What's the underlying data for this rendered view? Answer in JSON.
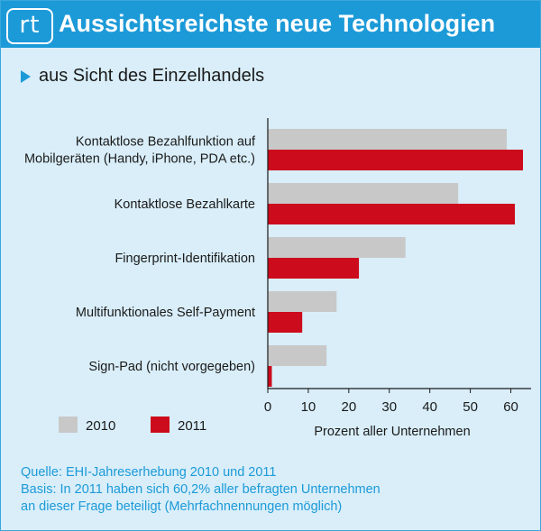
{
  "header": {
    "logo_text": "rt",
    "title": "Aussichtsreichste neue Technologien"
  },
  "subtitle": "aus Sicht des Einzelhandels",
  "chart_data": {
    "type": "bar",
    "orientation": "horizontal",
    "categories": [
      [
        "Kontaktlose Bezahlfunktion auf",
        "Mobilgeräten (Handy, iPhone, PDA etc.)"
      ],
      [
        "Kontaktlose Bezahlkarte"
      ],
      [
        "Fingerprint-Identifikation"
      ],
      [
        "Multifunktionales Self-Payment"
      ],
      [
        "Sign-Pad (nicht vorgegeben)"
      ]
    ],
    "series": [
      {
        "name": "2010",
        "color": "#c8c8c8",
        "values": [
          59,
          47,
          34,
          17,
          14.5
        ]
      },
      {
        "name": "2011",
        "color": "#cc0b1c",
        "values": [
          63,
          61,
          22.5,
          8.5,
          1
        ]
      }
    ],
    "xlabel": "Prozent aller Unternehmen",
    "xlim": [
      0,
      65
    ],
    "xticks": [
      0,
      10,
      20,
      30,
      40,
      50,
      60
    ],
    "grid": false,
    "legend": "bottom-left"
  },
  "footer": {
    "lines": [
      "Quelle: EHI-Jahreserhebung 2010 und 2011",
      "Basis: In 2011 haben sich 60,2% aller befragten Unternehmen",
      "an dieser Frage beteiligt (Mehrfachnennungen möglich)"
    ]
  }
}
